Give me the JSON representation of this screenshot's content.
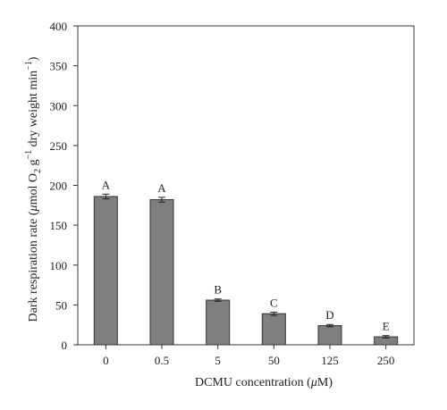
{
  "chart_data": {
    "type": "bar",
    "title": "",
    "categories": [
      "0",
      "0.5",
      "5",
      "50",
      "125",
      "250"
    ],
    "values": [
      186,
      182,
      56,
      39,
      24,
      10
    ],
    "errors": [
      3,
      3,
      1.5,
      2,
      1.5,
      1.5
    ],
    "group_letters": [
      "A",
      "A",
      "B",
      "C",
      "D",
      "E"
    ],
    "xlabel_parts": [
      "DCMU concentration (",
      "μ",
      "M)"
    ],
    "ylabel_parts": [
      "Dark respiration rate (",
      "μ",
      "mol O",
      "2",
      " g",
      "−1",
      " dry weight min",
      "−1",
      ")"
    ],
    "ylim": [
      0,
      400
    ],
    "yticks": [
      "0",
      "50",
      "100",
      "150",
      "200",
      "250",
      "300",
      "350",
      "400"
    ],
    "bar_color": "#7f7f7f",
    "grid": false
  }
}
